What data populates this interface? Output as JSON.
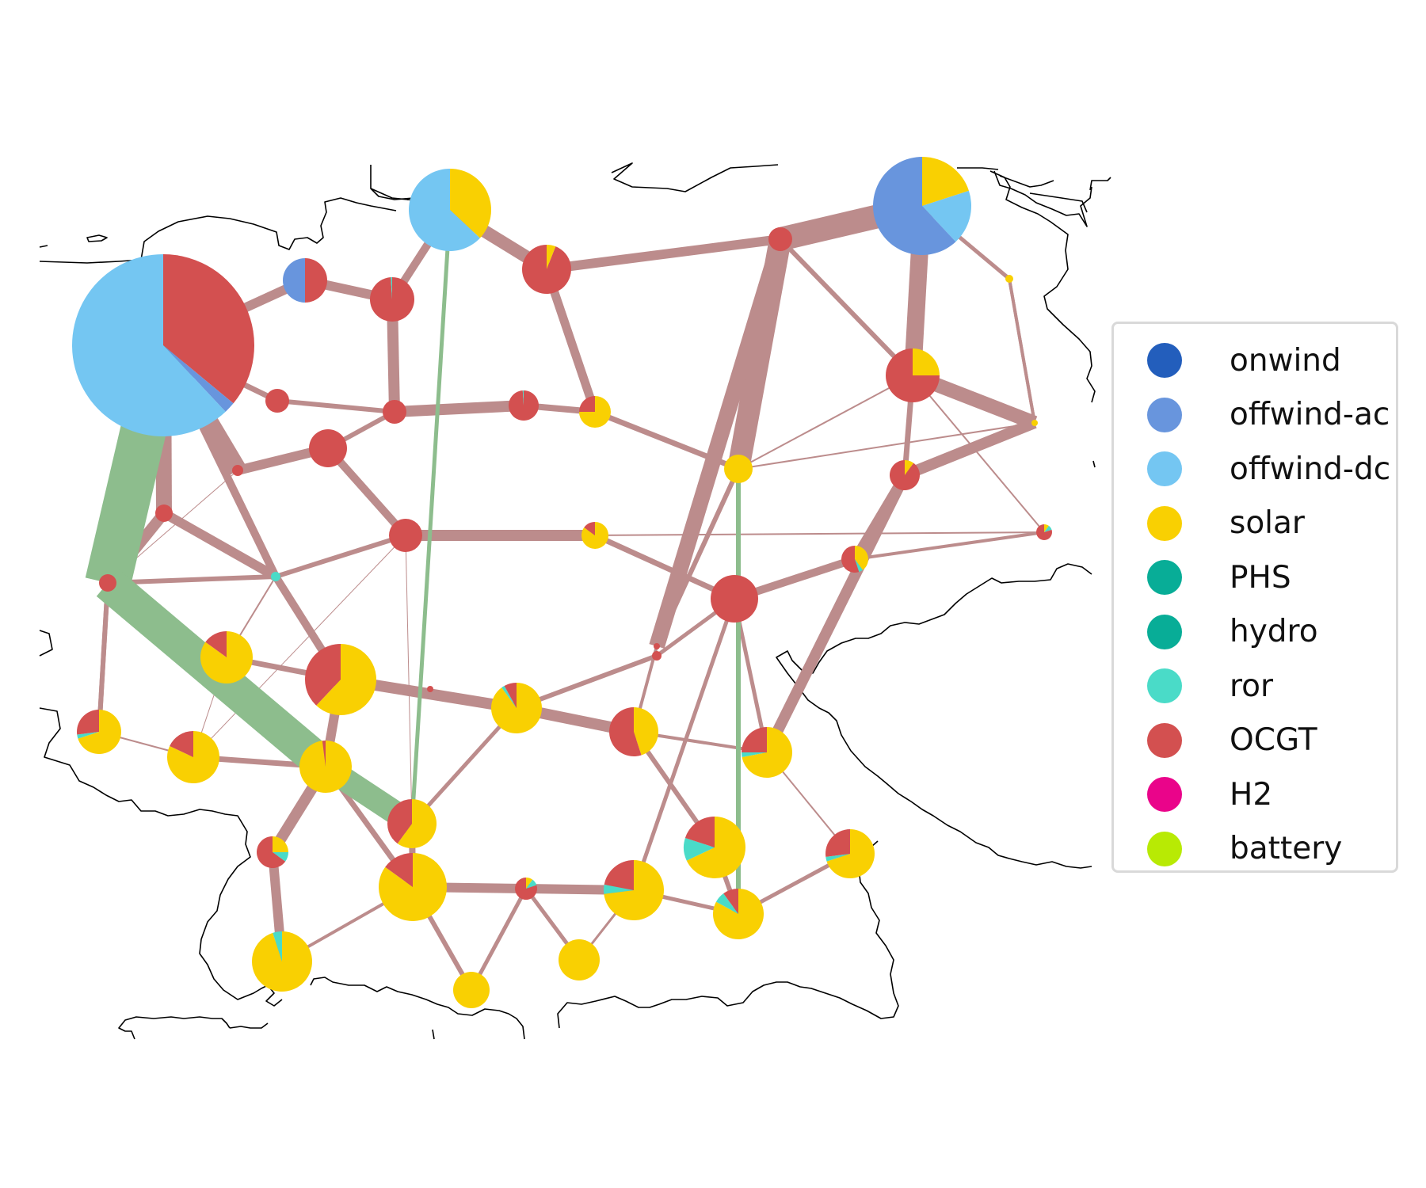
{
  "legend": {
    "items": [
      {
        "label": "onwind",
        "color": "#235ebc"
      },
      {
        "label": "offwind-ac",
        "color": "#6895dd"
      },
      {
        "label": "offwind-dc",
        "color": "#74c6f2"
      },
      {
        "label": "solar",
        "color": "#f9d002"
      },
      {
        "label": "PHS",
        "color": "#08ad97"
      },
      {
        "label": "hydro",
        "color": "#08ad97"
      },
      {
        "label": "ror",
        "color": "#4adbc8"
      },
      {
        "label": "OCGT",
        "color": "#d35050"
      },
      {
        "label": "H2",
        "color": "#ea048a"
      },
      {
        "label": "battery",
        "color": "#b8ea04"
      }
    ]
  },
  "styles": {
    "ac_line_color": "#bc8c8c",
    "dc_link_color": "#8dbd8d",
    "coastline_color": "#000000"
  }
}
